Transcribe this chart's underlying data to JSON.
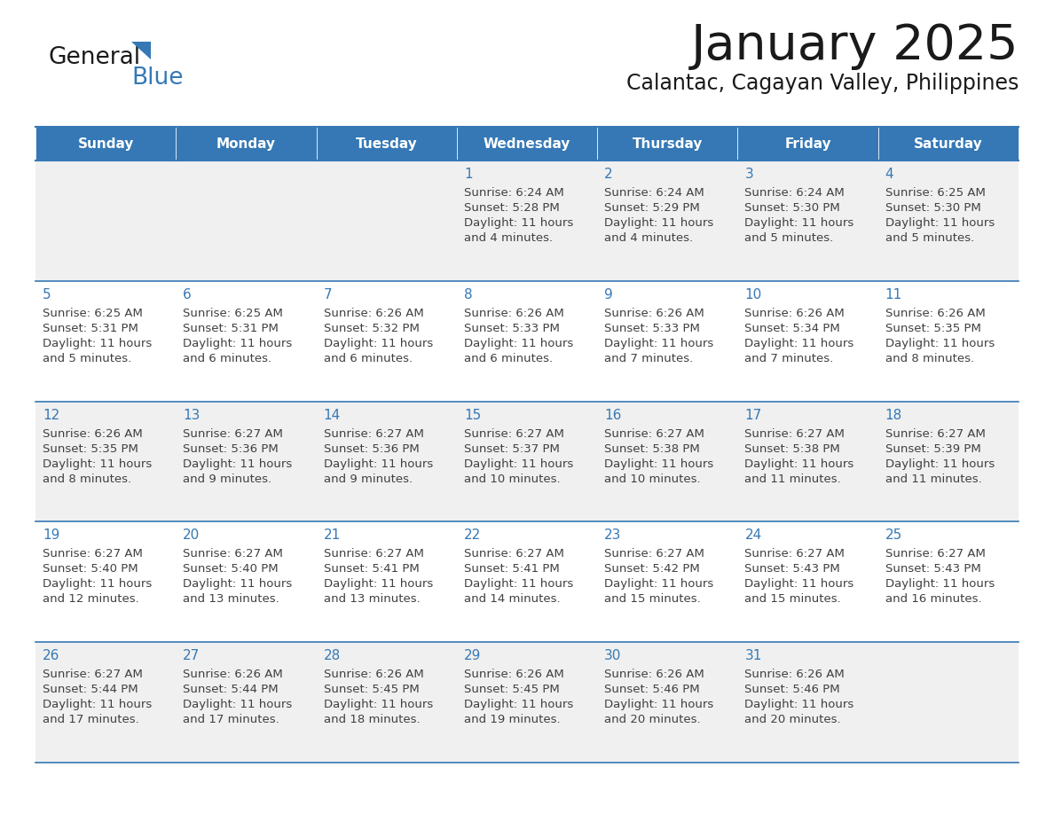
{
  "title": "January 2025",
  "subtitle": "Calantac, Cagayan Valley, Philippines",
  "days_of_week": [
    "Sunday",
    "Monday",
    "Tuesday",
    "Wednesday",
    "Thursday",
    "Friday",
    "Saturday"
  ],
  "header_bg_color": "#3578B5",
  "header_text_color": "#FFFFFF",
  "odd_row_bg": "#F0F0F0",
  "even_row_bg": "#FFFFFF",
  "line_color": "#3578B5",
  "day_number_color": "#3578B5",
  "cell_text_color": "#404040",
  "title_color": "#1a1a1a",
  "subtitle_color": "#1a1a1a",
  "logo_general_color": "#1a1a1a",
  "logo_blue_color": "#3578B5",
  "logo_triangle_color": "#3578B5",
  "calendar_data": [
    [
      {
        "day": "",
        "sunrise": "",
        "sunset": "",
        "daylight": ""
      },
      {
        "day": "",
        "sunrise": "",
        "sunset": "",
        "daylight": ""
      },
      {
        "day": "",
        "sunrise": "",
        "sunset": "",
        "daylight": ""
      },
      {
        "day": "1",
        "sunrise": "6:24 AM",
        "sunset": "5:28 PM",
        "daylight": "11 hours and 4 minutes."
      },
      {
        "day": "2",
        "sunrise": "6:24 AM",
        "sunset": "5:29 PM",
        "daylight": "11 hours and 4 minutes."
      },
      {
        "day": "3",
        "sunrise": "6:24 AM",
        "sunset": "5:30 PM",
        "daylight": "11 hours and 5 minutes."
      },
      {
        "day": "4",
        "sunrise": "6:25 AM",
        "sunset": "5:30 PM",
        "daylight": "11 hours and 5 minutes."
      }
    ],
    [
      {
        "day": "5",
        "sunrise": "6:25 AM",
        "sunset": "5:31 PM",
        "daylight": "11 hours and 5 minutes."
      },
      {
        "day": "6",
        "sunrise": "6:25 AM",
        "sunset": "5:31 PM",
        "daylight": "11 hours and 6 minutes."
      },
      {
        "day": "7",
        "sunrise": "6:26 AM",
        "sunset": "5:32 PM",
        "daylight": "11 hours and 6 minutes."
      },
      {
        "day": "8",
        "sunrise": "6:26 AM",
        "sunset": "5:33 PM",
        "daylight": "11 hours and 6 minutes."
      },
      {
        "day": "9",
        "sunrise": "6:26 AM",
        "sunset": "5:33 PM",
        "daylight": "11 hours and 7 minutes."
      },
      {
        "day": "10",
        "sunrise": "6:26 AM",
        "sunset": "5:34 PM",
        "daylight": "11 hours and 7 minutes."
      },
      {
        "day": "11",
        "sunrise": "6:26 AM",
        "sunset": "5:35 PM",
        "daylight": "11 hours and 8 minutes."
      }
    ],
    [
      {
        "day": "12",
        "sunrise": "6:26 AM",
        "sunset": "5:35 PM",
        "daylight": "11 hours and 8 minutes."
      },
      {
        "day": "13",
        "sunrise": "6:27 AM",
        "sunset": "5:36 PM",
        "daylight": "11 hours and 9 minutes."
      },
      {
        "day": "14",
        "sunrise": "6:27 AM",
        "sunset": "5:36 PM",
        "daylight": "11 hours and 9 minutes."
      },
      {
        "day": "15",
        "sunrise": "6:27 AM",
        "sunset": "5:37 PM",
        "daylight": "11 hours and 10 minutes."
      },
      {
        "day": "16",
        "sunrise": "6:27 AM",
        "sunset": "5:38 PM",
        "daylight": "11 hours and 10 minutes."
      },
      {
        "day": "17",
        "sunrise": "6:27 AM",
        "sunset": "5:38 PM",
        "daylight": "11 hours and 11 minutes."
      },
      {
        "day": "18",
        "sunrise": "6:27 AM",
        "sunset": "5:39 PM",
        "daylight": "11 hours and 11 minutes."
      }
    ],
    [
      {
        "day": "19",
        "sunrise": "6:27 AM",
        "sunset": "5:40 PM",
        "daylight": "11 hours and 12 minutes."
      },
      {
        "day": "20",
        "sunrise": "6:27 AM",
        "sunset": "5:40 PM",
        "daylight": "11 hours and 13 minutes."
      },
      {
        "day": "21",
        "sunrise": "6:27 AM",
        "sunset": "5:41 PM",
        "daylight": "11 hours and 13 minutes."
      },
      {
        "day": "22",
        "sunrise": "6:27 AM",
        "sunset": "5:41 PM",
        "daylight": "11 hours and 14 minutes."
      },
      {
        "day": "23",
        "sunrise": "6:27 AM",
        "sunset": "5:42 PM",
        "daylight": "11 hours and 15 minutes."
      },
      {
        "day": "24",
        "sunrise": "6:27 AM",
        "sunset": "5:43 PM",
        "daylight": "11 hours and 15 minutes."
      },
      {
        "day": "25",
        "sunrise": "6:27 AM",
        "sunset": "5:43 PM",
        "daylight": "11 hours and 16 minutes."
      }
    ],
    [
      {
        "day": "26",
        "sunrise": "6:27 AM",
        "sunset": "5:44 PM",
        "daylight": "11 hours and 17 minutes."
      },
      {
        "day": "27",
        "sunrise": "6:26 AM",
        "sunset": "5:44 PM",
        "daylight": "11 hours and 17 minutes."
      },
      {
        "day": "28",
        "sunrise": "6:26 AM",
        "sunset": "5:45 PM",
        "daylight": "11 hours and 18 minutes."
      },
      {
        "day": "29",
        "sunrise": "6:26 AM",
        "sunset": "5:45 PM",
        "daylight": "11 hours and 19 minutes."
      },
      {
        "day": "30",
        "sunrise": "6:26 AM",
        "sunset": "5:46 PM",
        "daylight": "11 hours and 20 minutes."
      },
      {
        "day": "31",
        "sunrise": "6:26 AM",
        "sunset": "5:46 PM",
        "daylight": "11 hours and 20 minutes."
      },
      {
        "day": "",
        "sunrise": "",
        "sunset": "",
        "daylight": ""
      }
    ]
  ]
}
